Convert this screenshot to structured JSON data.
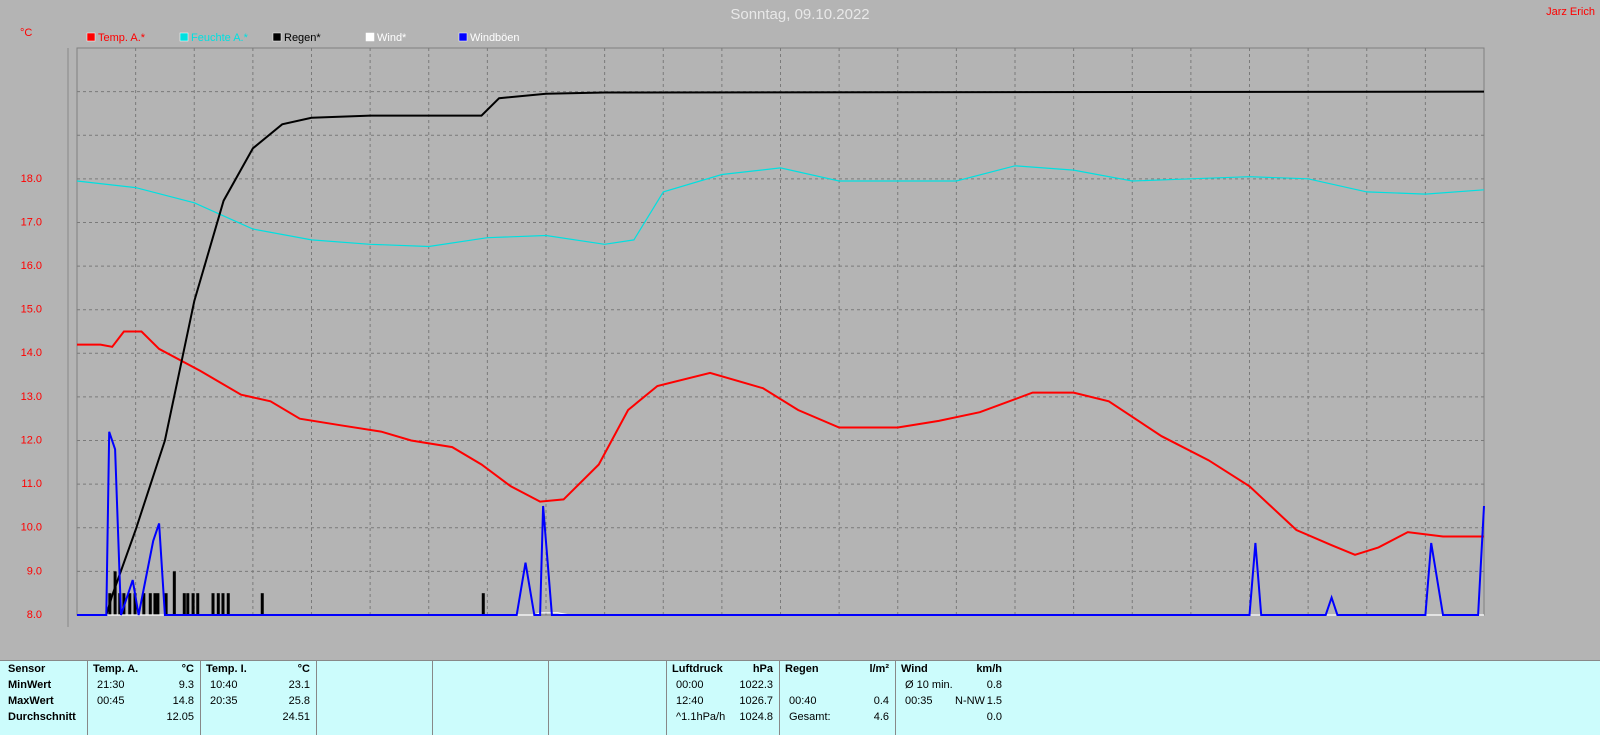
{
  "chart_data": {
    "type": "line",
    "title": "Sonntag, 09.10.2022",
    "author": "Jarz Erich",
    "y_unit": "°C",
    "xlim": [
      0,
      24
    ],
    "x_gridlines": [
      1,
      2,
      3,
      4,
      5,
      6,
      7,
      8,
      9,
      10,
      11,
      12,
      13,
      14,
      15,
      16,
      17,
      18,
      19,
      20,
      21,
      22,
      23
    ],
    "ylim": [
      8,
      21
    ],
    "yticks": [
      {
        "value": 8,
        "label": "8.0"
      },
      {
        "value": 9,
        "label": "9.0"
      },
      {
        "value": 10,
        "label": "10.0"
      },
      {
        "value": 11,
        "label": "11.0"
      },
      {
        "value": 12,
        "label": "12.0"
      },
      {
        "value": 13,
        "label": "13.0"
      },
      {
        "value": 14,
        "label": "14.0"
      },
      {
        "value": 15,
        "label": "15.0"
      },
      {
        "value": 16,
        "label": "16.0"
      },
      {
        "value": 17,
        "label": "17.0"
      },
      {
        "value": 18,
        "label": "18.0"
      }
    ],
    "y_gridlines": [
      19,
      20
    ],
    "grid": true,
    "series": [
      {
        "name": "Temp. A.*",
        "color": "#ff0000",
        "x": [
          0,
          0.4,
          0.6,
          0.8,
          1.1,
          1.4,
          2.1,
          2.8,
          3.3,
          3.8,
          4.5,
          5.2,
          5.7,
          6.4,
          6.9,
          7.4,
          7.9,
          8.3,
          8.9,
          9.4,
          9.9,
          10.8,
          11.7,
          12.3,
          13,
          14,
          14.7,
          15.4,
          16.3,
          17,
          17.6,
          18.5,
          19.3,
          20,
          20.8,
          21.4,
          21.8,
          22.2,
          22.7,
          23.3,
          24
        ],
        "values": [
          14.2,
          14.2,
          14.15,
          14.5,
          14.5,
          14.1,
          13.6,
          13.05,
          12.9,
          12.5,
          12.35,
          12.2,
          12.0,
          11.85,
          11.45,
          10.95,
          10.6,
          10.65,
          11.45,
          12.7,
          13.25,
          13.55,
          13.2,
          12.7,
          12.3,
          12.3,
          12.45,
          12.65,
          13.1,
          13.1,
          12.9,
          12.1,
          11.55,
          10.95,
          9.95,
          9.6,
          9.38,
          9.55,
          9.9,
          9.8,
          9.8
        ]
      },
      {
        "name": "Feuchte A.*",
        "color": "#00e0e0",
        "x": [
          0,
          1,
          2,
          3,
          4,
          5,
          6,
          7,
          8,
          9,
          9.5,
          10,
          11,
          12,
          13,
          14,
          15,
          16,
          17,
          18,
          19,
          20,
          21,
          22,
          23,
          24
        ],
        "values": [
          17.95,
          17.8,
          17.45,
          16.85,
          16.6,
          16.5,
          16.45,
          16.65,
          16.7,
          16.5,
          16.6,
          17.7,
          18.1,
          18.25,
          17.95,
          17.95,
          17.95,
          18.3,
          18.2,
          17.95,
          18.0,
          18.05,
          18.0,
          17.7,
          17.65,
          17.75
        ]
      },
      {
        "name": "Regen*",
        "color": "#000000",
        "x": [
          0,
          0.5,
          0.6,
          1,
          1.5,
          2,
          2.5,
          3,
          3.5,
          4,
          5,
          6.9,
          7.2,
          8,
          9,
          24
        ],
        "values": [
          8.0,
          8.0,
          8.45,
          9.95,
          12.0,
          15.2,
          17.5,
          18.7,
          19.25,
          19.4,
          19.45,
          19.45,
          19.85,
          19.95,
          19.98,
          20.0
        ]
      },
      {
        "name": "Wind*",
        "color": "#ffffff",
        "x": [
          0,
          7.8,
          7.9,
          8.2,
          8.4,
          24
        ],
        "values": [
          8.0,
          8.0,
          8.05,
          8.05,
          8.0,
          8.0
        ]
      },
      {
        "name": "Windböen",
        "color": "#0000ff",
        "x": [
          0,
          0.5,
          0.55,
          0.65,
          0.75,
          0.95,
          1.05,
          1.3,
          1.4,
          1.5,
          7.5,
          7.65,
          7.8,
          7.9,
          7.95,
          8.1,
          20,
          20.1,
          20.2,
          21.3,
          21.4,
          21.5,
          23,
          23.1,
          23.3,
          23.9,
          24
        ],
        "values": [
          8.0,
          8.0,
          12.2,
          11.8,
          8.0,
          8.8,
          8.0,
          9.7,
          10.1,
          8.0,
          8.0,
          9.2,
          8.0,
          8.0,
          10.5,
          8.0,
          8.0,
          9.65,
          8.0,
          8.0,
          8.4,
          8.0,
          8.0,
          9.65,
          8.0,
          8.0,
          10.5
        ]
      }
    ],
    "rain_bars": {
      "color": "#000000",
      "x": [
        0.56,
        0.65,
        0.73,
        0.8,
        0.9,
        0.99,
        1.14,
        1.25,
        1.33,
        1.38,
        1.52,
        1.66,
        1.83,
        1.89,
        1.98,
        2.06,
        2.32,
        2.41,
        2.49,
        2.58,
        3.16,
        6.93
      ],
      "values": [
        8.5,
        9.0,
        8.5,
        8.5,
        8.5,
        8.5,
        8.5,
        8.5,
        8.5,
        8.5,
        8.5,
        9.0,
        8.5,
        8.5,
        8.5,
        8.5,
        8.5,
        8.5,
        8.5,
        8.5,
        8.5,
        8.5
      ]
    }
  },
  "table": {
    "row_labels": [
      "Sensor",
      "MinWert",
      "MaxWert",
      "Durchschnitt"
    ],
    "groups": [
      {
        "title": "Temp. A.",
        "unit": "°C",
        "rows": [
          [
            "21:30",
            "9.3"
          ],
          [
            "00:45",
            "14.8"
          ],
          [
            null,
            "12.05"
          ]
        ]
      },
      {
        "title": "Temp. I.",
        "unit": "°C",
        "rows": [
          [
            "10:40",
            "23.1"
          ],
          [
            "20:35",
            "25.8"
          ],
          [
            null,
            "24.51"
          ]
        ]
      },
      {
        "title": "Luftdruck",
        "unit": "hPa",
        "rows": [
          [
            "00:00",
            "1022.3"
          ],
          [
            "12:40",
            "1026.7"
          ],
          [
            "^1.1hPa/h",
            "1024.8"
          ]
        ]
      },
      {
        "title": "Regen",
        "unit": "l/m²",
        "rows": [
          [
            null,
            null
          ],
          [
            "00:40",
            "0.4"
          ],
          [
            "Gesamt:",
            "4.6"
          ]
        ]
      },
      {
        "title": "Wind",
        "unit": "km/h",
        "rows": [
          [
            "Ø 10 min.",
            null,
            "0.8"
          ],
          [
            "00:35",
            "N-NW",
            "1.5"
          ],
          [
            null,
            null,
            "0.0"
          ]
        ]
      }
    ]
  }
}
